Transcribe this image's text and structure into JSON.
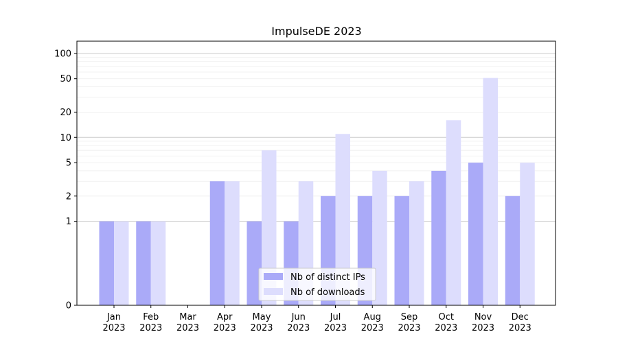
{
  "chart_data": {
    "type": "bar",
    "title": "ImpulseDE 2023",
    "xlabel": "",
    "ylabel": "",
    "y_scale": "symlog",
    "ylim": [
      0,
      140
    ],
    "y_ticks": [
      0,
      1,
      2,
      5,
      10,
      20,
      50,
      100
    ],
    "categories": [
      {
        "month": "Jan",
        "year": "2023"
      },
      {
        "month": "Feb",
        "year": "2023"
      },
      {
        "month": "Mar",
        "year": "2023"
      },
      {
        "month": "Apr",
        "year": "2023"
      },
      {
        "month": "May",
        "year": "2023"
      },
      {
        "month": "Jun",
        "year": "2023"
      },
      {
        "month": "Jul",
        "year": "2023"
      },
      {
        "month": "Aug",
        "year": "2023"
      },
      {
        "month": "Sep",
        "year": "2023"
      },
      {
        "month": "Oct",
        "year": "2023"
      },
      {
        "month": "Nov",
        "year": "2023"
      },
      {
        "month": "Dec",
        "year": "2023"
      }
    ],
    "series": [
      {
        "name": "Nb of distinct IPs",
        "color": "#aaaaf8",
        "values": [
          1,
          1,
          0,
          3,
          1,
          1,
          2,
          2,
          2,
          4,
          5,
          2
        ]
      },
      {
        "name": "Nb of downloads",
        "color": "#ddddfd",
        "values": [
          1,
          1,
          0,
          3,
          7,
          3,
          11,
          4,
          3,
          16,
          51,
          5
        ]
      }
    ],
    "grid": true,
    "legend_position": "bottom-center"
  }
}
